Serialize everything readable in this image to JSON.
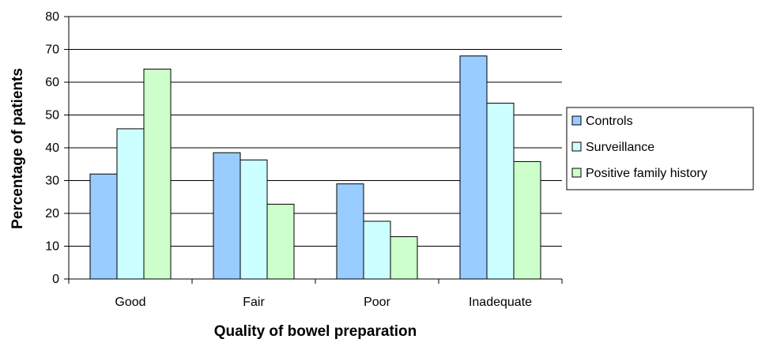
{
  "chart_data": {
    "type": "bar",
    "categories": [
      "Good",
      "Fair",
      "Poor",
      "Inadequate"
    ],
    "series": [
      {
        "name": "Controls",
        "color": "#99ccff",
        "values": [
          32,
          38.5,
          29,
          68
        ]
      },
      {
        "name": "Surveillance",
        "color": "#ccffff",
        "values": [
          45.8,
          36.3,
          17.6,
          53.6
        ]
      },
      {
        "name": "Positive family history",
        "color": "#ccffcc",
        "values": [
          64,
          22.8,
          12.9,
          35.8
        ]
      }
    ],
    "title": "",
    "xlabel": "Quality of bowel preparation",
    "ylabel": "Percentage of patients",
    "ylim": [
      0,
      80
    ],
    "yticks": [
      0,
      10,
      20,
      30,
      40,
      50,
      60,
      70,
      80
    ],
    "grid": true,
    "legend": "right"
  }
}
